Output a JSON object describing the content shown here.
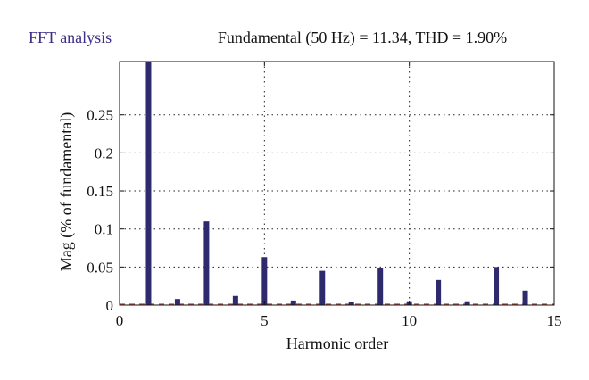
{
  "panel_label": "FFT analysis",
  "chart_data": {
    "type": "bar",
    "title": "Fundamental (50 Hz) = 11.34, THD = 1.90%",
    "xlabel": "Harmonic order",
    "ylabel": "Mag (% of fundamental)",
    "xlim": [
      0,
      15
    ],
    "ylim": [
      0,
      0.32
    ],
    "xticks": [
      0,
      5,
      10,
      15
    ],
    "xtick_labels": [
      "0",
      "5",
      "10",
      "15"
    ],
    "yticks": [
      0,
      0.05,
      0.1,
      0.15,
      0.2,
      0.25
    ],
    "ytick_labels": [
      "0",
      "0.05",
      "0.1",
      "0.15",
      "0.2",
      "0.25"
    ],
    "grid": "dotted",
    "bar_color": "#2f2a6e",
    "x": [
      1,
      2,
      3,
      4,
      5,
      6,
      7,
      8,
      9,
      10,
      11,
      12,
      13,
      14
    ],
    "values": [
      0.32,
      0.008,
      0.11,
      0.012,
      0.063,
      0.006,
      0.045,
      0.004,
      0.049,
      0.005,
      0.033,
      0.005,
      0.05,
      0.019
    ]
  }
}
